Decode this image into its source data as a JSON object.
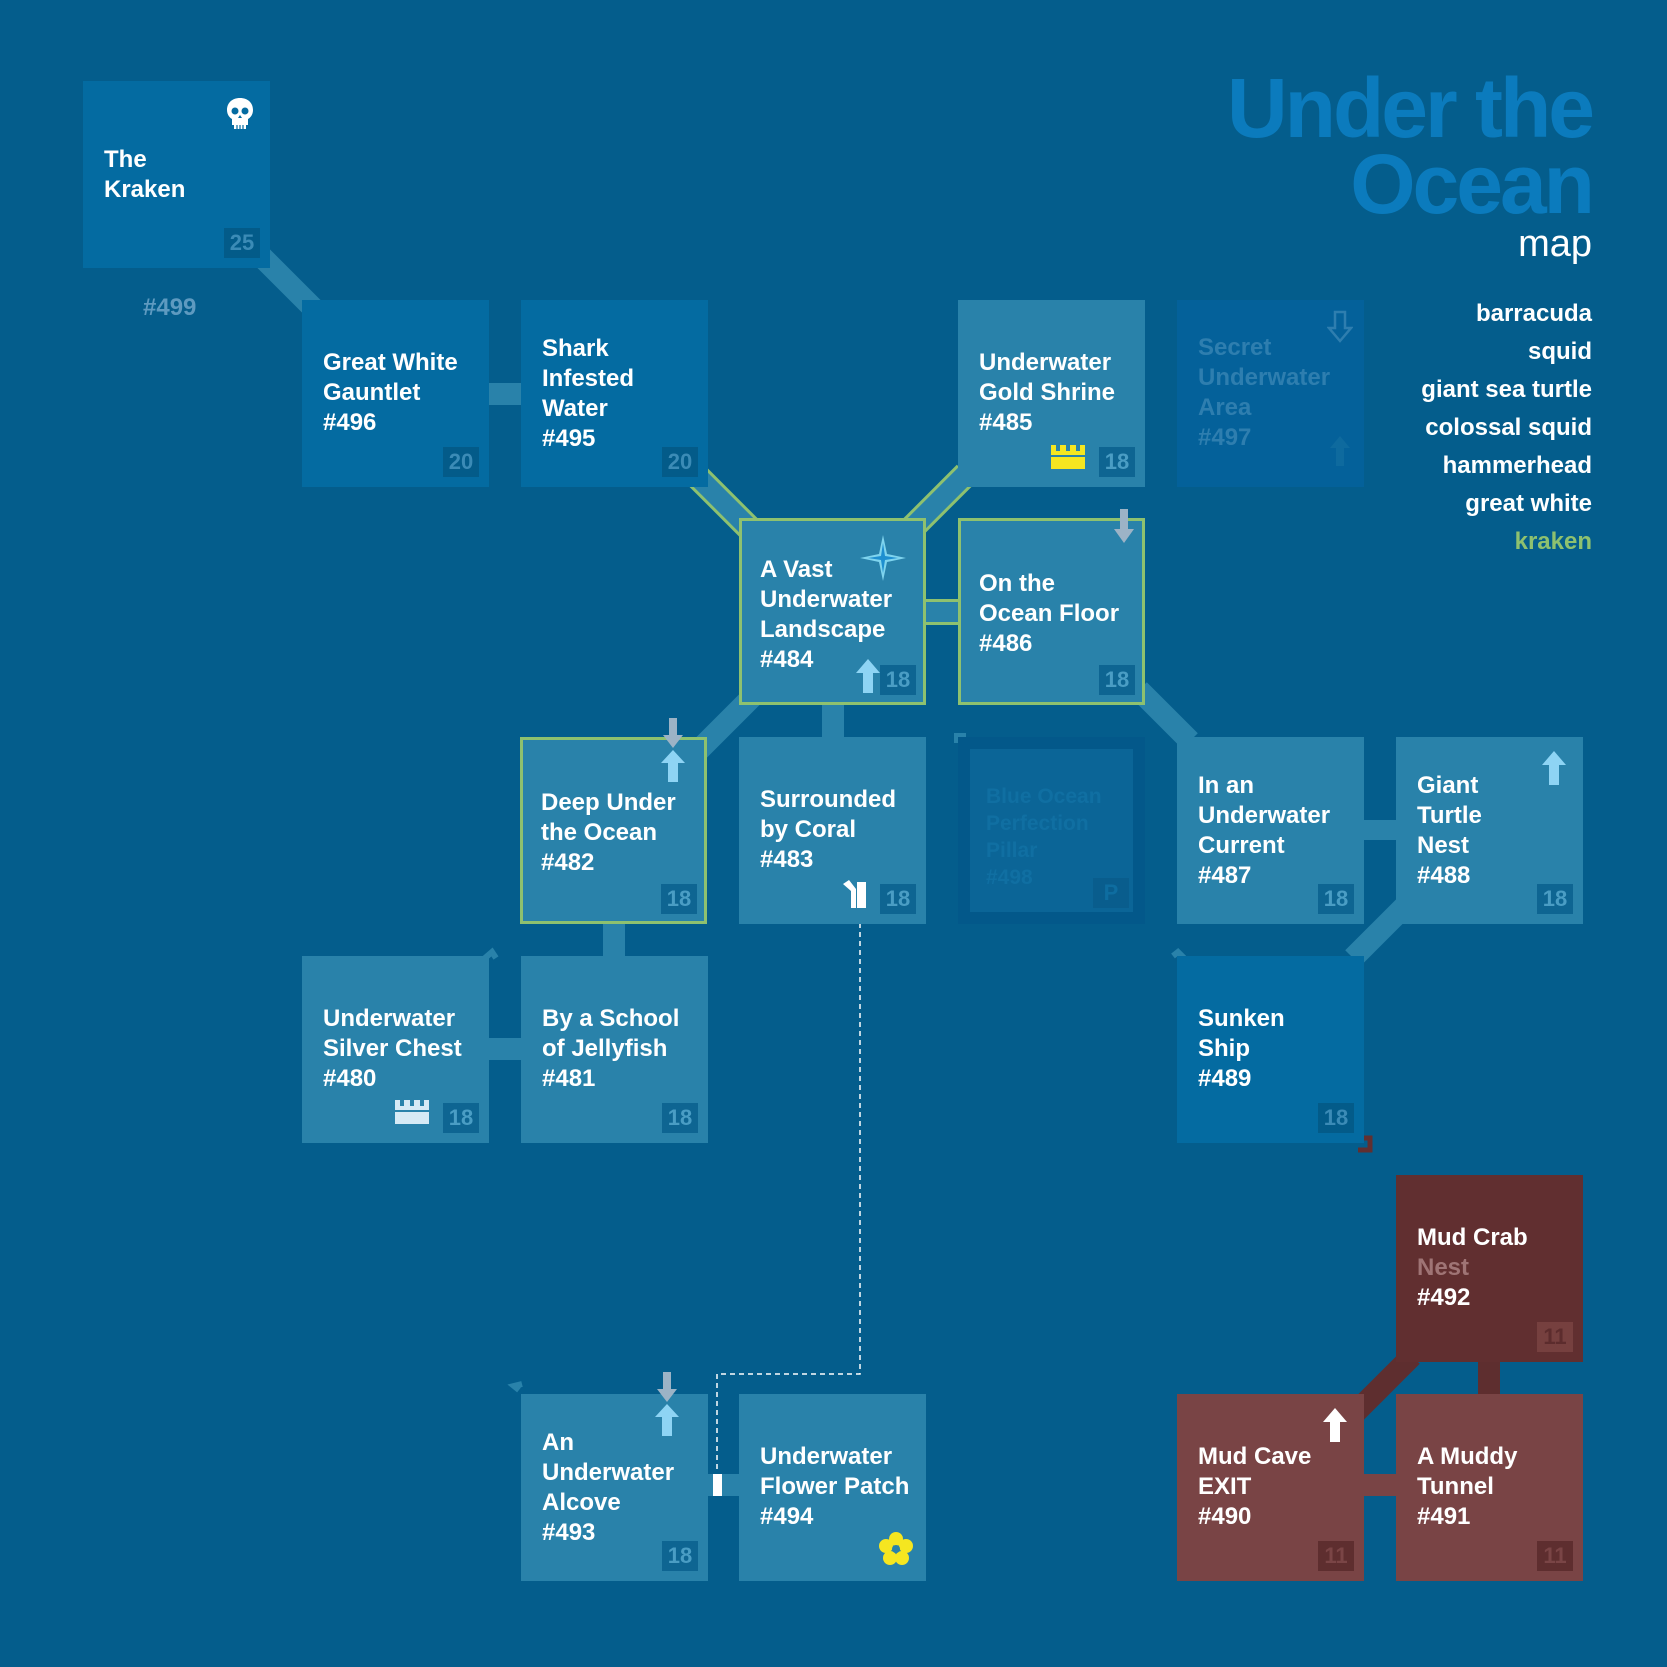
{
  "title": {
    "line1": "Under the",
    "line2": "Ocean",
    "subtitle": "map"
  },
  "legend": [
    "barracuda",
    "squid",
    "giant sea turtle",
    "colossal squid",
    "hammerhead",
    "great white",
    "kraken"
  ],
  "colors": {
    "background": "#045d8c",
    "room": "#2982aa",
    "room_dark": "#046ba1",
    "mud_room": "#794445",
    "mud_room_dark": "#612f30",
    "highlight": "#8ec16f",
    "title": "#0b7bbd",
    "treasure_gold": "#f5e620",
    "treasure_silver": "#d6eaf5"
  },
  "floor_label": "#499",
  "rooms": {
    "r499": {
      "name": "The\nKraken",
      "num": "",
      "level": "25"
    },
    "r496": {
      "name": "Great White\nGauntlet",
      "num": "#496",
      "level": "20"
    },
    "r495": {
      "name": "Shark\nInfested\nWater",
      "num": "#495",
      "level": "20"
    },
    "r485": {
      "name": "Underwater\nGold Shrine",
      "num": "#485",
      "level": "18"
    },
    "r497": {
      "name": "Secret\nUnderwater\nArea",
      "num": "#497",
      "level": ""
    },
    "r484": {
      "name": "A Vast\nUnderwater\nLandscape",
      "num": "#484",
      "level": "18"
    },
    "r486": {
      "name": "On the\nOcean Floor",
      "num": "#486",
      "level": "18"
    },
    "r482": {
      "name": "Deep Under\nthe Ocean",
      "num": "#482",
      "level": "18"
    },
    "r483": {
      "name": "Surrounded\nby Coral",
      "num": "#483",
      "level": "18"
    },
    "r498": {
      "name": "Blue Ocean\nPerfection\nPillar",
      "num": "#498",
      "level": "P"
    },
    "r487": {
      "name": "In an\nUnderwater\nCurrent",
      "num": "#487",
      "level": "18"
    },
    "r488": {
      "name": "Giant\nTurtle\nNest",
      "num": "#488",
      "level": "18"
    },
    "r480": {
      "name": "Underwater\nSilver Chest",
      "num": "#480",
      "level": "18"
    },
    "r481": {
      "name": "By a School\nof Jellyfish",
      "num": "#481",
      "level": "18"
    },
    "r489": {
      "name": "Sunken\nShip",
      "num": "#489",
      "level": "18"
    },
    "r492": {
      "name": "Mud Crab",
      "name2": "Nest",
      "num": "#492",
      "level": "11"
    },
    "r490": {
      "name": "Mud Cave\nEXIT",
      "num": "#490",
      "level": "11"
    },
    "r491": {
      "name": "A Muddy\nTunnel",
      "num": "#491",
      "level": "11"
    },
    "r493": {
      "name": "An\nUnderwater\nAlcove",
      "num": "#493",
      "level": "18"
    },
    "r494": {
      "name": "Underwater\nFlower Patch",
      "num": "#494",
      "level": ""
    }
  }
}
